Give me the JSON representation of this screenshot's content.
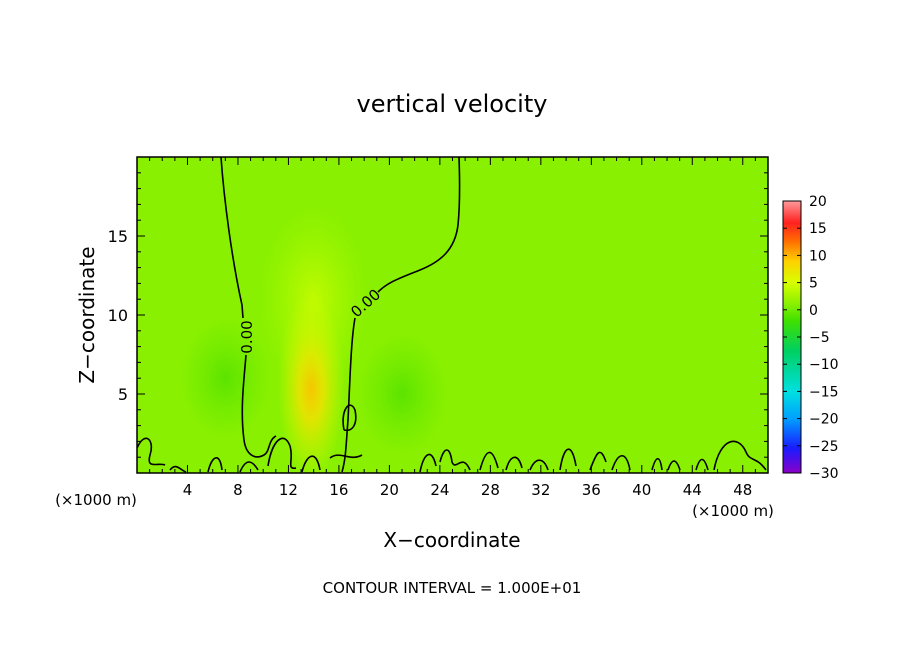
{
  "chart_data": {
    "type": "heatmap",
    "title": "vertical velocity",
    "xlabel": "X−coordinate",
    "ylabel": "Z−coordinate",
    "x_unit_left": "(×1000 m)",
    "x_unit_right": "(×1000 m)",
    "footer": "CONTOUR INTERVAL = 1.000E+01",
    "xlim": [
      0,
      50
    ],
    "ylim": [
      0,
      20
    ],
    "x_ticks": [
      4,
      8,
      12,
      16,
      20,
      24,
      28,
      32,
      36,
      40,
      44,
      48
    ],
    "x_tick_labels": [
      "4",
      "8",
      "12",
      "16",
      "20",
      "24",
      "28",
      "32",
      "36",
      "40",
      "44",
      "48"
    ],
    "y_ticks": [
      5,
      10,
      15
    ],
    "y_tick_labels": [
      "5",
      "10",
      "15"
    ],
    "colorbar": {
      "range": [
        -30,
        20
      ],
      "ticks": [
        20,
        15,
        10,
        5,
        0,
        -5,
        -10,
        -15,
        -20,
        -25,
        -30
      ],
      "tick_labels": [
        "20",
        "15",
        "10",
        "5",
        "0",
        "−5",
        "−10",
        "−15",
        "−20",
        "−25",
        "−30"
      ],
      "colors": [
        "#8a00c8",
        "#1a1aff",
        "#00a0ff",
        "#00e0e0",
        "#00d060",
        "#40e000",
        "#88f000",
        "#d8ff00",
        "#ffd000",
        "#ff7000",
        "#ff2020",
        "#ff9a9a"
      ]
    },
    "background_value": 0,
    "background_color": "#88f000",
    "contour_labels": [
      "0.00",
      "0.00"
    ],
    "features": [
      {
        "kind": "updraft",
        "x": 13.8,
        "z": 5.5,
        "value": 4
      },
      {
        "kind": "weak-updraft",
        "x": 14,
        "z": 11,
        "value": 1.5
      },
      {
        "kind": "downdraft",
        "x": 7,
        "z": 6,
        "value": -1.5
      },
      {
        "kind": "downdraft",
        "x": 21,
        "z": 5,
        "value": -1.5
      }
    ]
  }
}
